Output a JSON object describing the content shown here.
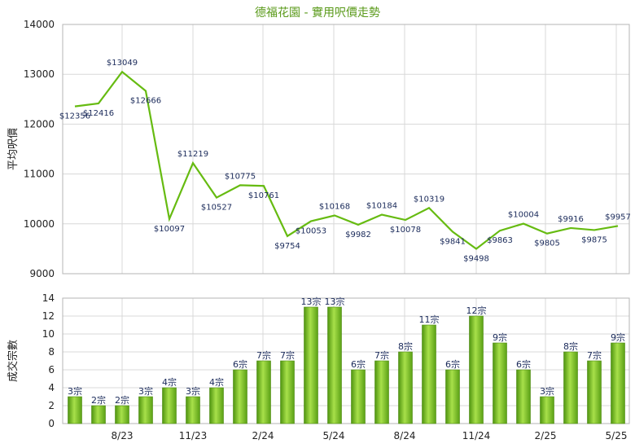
{
  "chart_data": [
    {
      "type": "line",
      "title": "德福花園 - 實用呎價走勢",
      "ylabel": "平均呎價",
      "ylim": [
        9000,
        14000
      ],
      "yticks": [
        9000,
        10000,
        11000,
        12000,
        13000,
        14000
      ],
      "x": [
        0,
        1,
        2,
        3,
        4,
        5,
        6,
        7,
        8,
        9,
        10,
        11,
        12,
        13,
        14,
        15,
        16,
        17,
        18,
        19,
        20,
        21,
        22,
        23
      ],
      "values": [
        12356,
        12416,
        13049,
        12666,
        10097,
        11219,
        10527,
        10775,
        10761,
        9754,
        10053,
        10168,
        9982,
        10184,
        10078,
        10319,
        9841,
        9498,
        9863,
        10004,
        9805,
        9916,
        9875,
        9957
      ],
      "labels": [
        "$12356",
        "$12416",
        "$13049",
        "$12666",
        "$10097",
        "$11219",
        "$10527",
        "$10775",
        "$10761",
        "$9754",
        "$10053",
        "$10168",
        "$9982",
        "$10184",
        "$10078",
        "$10319",
        "$9841",
        "$9498",
        "$9863",
        "$10004",
        "$9805",
        "$9916",
        "$9875",
        "$9957"
      ],
      "color": "#66bb11",
      "grid": true
    },
    {
      "type": "bar",
      "ylabel": "成交宗數",
      "ylim": [
        0,
        14
      ],
      "yticks": [
        0,
        2,
        4,
        6,
        8,
        10,
        12,
        14
      ],
      "categories": [
        "8/23",
        "11/23",
        "2/24",
        "5/24",
        "8/24",
        "11/24",
        "2/25",
        "5/25"
      ],
      "values": [
        3,
        2,
        2,
        3,
        4,
        3,
        4,
        6,
        7,
        7,
        13,
        13,
        6,
        7,
        8,
        11,
        6,
        12,
        9,
        6,
        3,
        8,
        7,
        9
      ],
      "labels": [
        "3宗",
        "2宗",
        "2宗",
        "3宗",
        "4宗",
        "3宗",
        "4宗",
        "6宗",
        "7宗",
        "7宗",
        "13宗",
        "13宗",
        "6宗",
        "7宗",
        "8宗",
        "11宗",
        "6宗",
        "12宗",
        "9宗",
        "6宗",
        "3宗",
        "8宗",
        "7宗",
        "9宗"
      ],
      "color": "#7cc91c",
      "grid": true
    }
  ]
}
